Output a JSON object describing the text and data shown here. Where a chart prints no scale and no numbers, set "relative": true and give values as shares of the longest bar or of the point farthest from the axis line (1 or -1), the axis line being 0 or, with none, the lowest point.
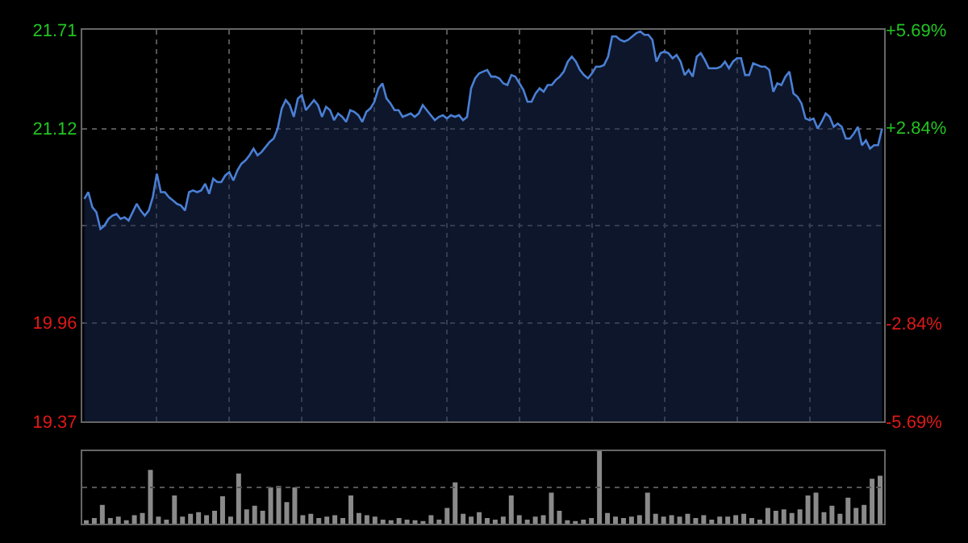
{
  "chart_data": [
    {
      "type": "area",
      "categories": [
        null,
        null,
        null,
        null,
        null,
        null,
        null,
        null,
        null,
        null,
        null,
        null,
        null,
        null,
        null,
        null,
        null,
        null,
        null,
        null,
        null,
        null,
        null,
        null,
        null,
        null,
        null,
        null,
        null,
        null,
        null,
        null,
        null,
        null,
        null,
        null,
        null,
        null,
        null,
        null,
        null,
        null,
        null,
        null,
        null,
        null,
        null,
        null,
        null,
        null,
        null,
        null,
        null,
        null,
        null,
        null,
        null,
        null,
        null,
        null,
        null,
        null,
        null,
        null,
        null,
        null,
        null,
        null,
        null,
        null,
        null,
        null,
        null,
        null,
        null,
        null,
        null,
        null,
        null,
        null,
        null,
        null,
        null,
        null,
        null,
        null,
        null,
        null,
        null,
        null,
        null,
        null,
        null,
        null,
        null,
        null,
        null,
        null,
        null,
        null,
        null,
        null,
        null,
        null,
        null,
        null,
        null,
        null,
        null,
        null,
        null,
        null,
        null,
        null,
        null,
        null,
        null,
        null,
        null,
        null,
        null,
        null,
        null,
        null,
        null,
        null,
        null,
        null,
        null,
        null,
        null,
        null,
        null,
        null,
        null,
        null,
        null,
        null,
        null,
        null,
        null,
        null,
        null,
        null,
        null,
        null,
        null,
        null,
        null,
        null,
        null,
        null,
        null,
        null,
        null,
        null,
        null,
        null,
        null,
        null,
        null,
        null,
        null,
        null,
        null,
        null,
        null,
        null,
        null,
        null,
        null,
        null,
        null,
        null,
        null,
        null,
        null,
        null,
        null,
        null,
        null,
        null,
        null,
        null,
        null,
        null,
        null,
        null,
        null,
        null,
        null,
        null,
        null,
        null,
        null,
        null,
        null,
        null,
        null
      ],
      "series": [
        {
          "color": "#4a7fd4",
          "values": [
            20.7,
            20.74,
            20.65,
            20.62,
            20.52,
            20.54,
            20.58,
            20.6,
            20.61,
            20.58,
            20.59,
            20.57,
            20.62,
            20.67,
            20.63,
            20.6,
            20.63,
            20.71,
            20.85,
            20.74,
            20.74,
            20.71,
            20.69,
            20.67,
            20.66,
            20.63,
            20.74,
            20.75,
            20.74,
            20.75,
            20.79,
            20.73,
            20.82,
            20.8,
            20.8,
            20.84,
            20.86,
            20.81,
            20.87,
            20.91,
            20.93,
            20.96,
            21.0,
            20.96,
            20.98,
            21.01,
            21.04,
            21.06,
            21.12,
            21.24,
            21.29,
            21.26,
            21.19,
            21.3,
            21.32,
            21.23,
            21.26,
            21.29,
            21.26,
            21.19,
            21.25,
            21.23,
            21.17,
            21.21,
            21.19,
            21.16,
            21.23,
            21.22,
            21.2,
            21.16,
            21.22,
            21.24,
            21.28,
            21.36,
            21.39,
            21.3,
            21.27,
            21.23,
            21.23,
            21.19,
            21.2,
            21.21,
            21.19,
            21.21,
            21.26,
            21.23,
            21.2,
            21.17,
            21.19,
            21.2,
            21.18,
            21.2,
            21.19,
            21.2,
            21.17,
            21.19,
            21.36,
            21.42,
            21.45,
            21.46,
            21.47,
            21.43,
            21.43,
            21.42,
            21.39,
            21.38,
            21.44,
            21.43,
            21.39,
            21.35,
            21.28,
            21.28,
            21.33,
            21.36,
            21.34,
            21.38,
            21.38,
            21.41,
            21.43,
            21.46,
            21.52,
            21.55,
            21.52,
            21.47,
            21.44,
            21.42,
            21.45,
            21.49,
            21.49,
            21.5,
            21.55,
            21.67,
            21.67,
            21.65,
            21.64,
            21.65,
            21.67,
            21.69,
            21.7,
            21.68,
            21.68,
            21.65,
            21.52,
            21.57,
            21.58,
            21.57,
            21.54,
            21.56,
            21.52,
            21.44,
            21.47,
            21.43,
            21.55,
            21.57,
            21.53,
            21.48,
            21.48,
            21.48,
            21.49,
            21.52,
            21.48,
            21.52,
            21.54,
            21.54,
            21.44,
            21.44,
            21.51,
            21.5,
            21.49,
            21.49,
            21.47,
            21.34,
            21.39,
            21.38,
            21.43,
            21.46,
            21.33,
            21.31,
            21.27,
            21.18,
            21.17,
            21.18,
            21.12,
            21.16,
            21.21,
            21.19,
            21.13,
            21.15,
            21.13,
            21.06,
            21.06,
            21.09,
            21.13,
            21.02,
            21.05,
            21.0,
            21.02,
            21.02,
            21.12
          ]
        }
      ],
      "ylim": [
        19.37,
        21.71
      ],
      "yticks": [
        19.37,
        19.96,
        {
          "value": 20.54,
          "label": null
        },
        21.12,
        21.71
      ],
      "y2lim": [
        -5.69,
        5.69
      ],
      "y2ticks": [
        {
          "value": -5.69,
          "label": "-5.69%"
        },
        {
          "value": -2.84,
          "label": "-2.84%"
        },
        {
          "value": 2.84,
          "label": "+2.84%"
        },
        {
          "value": 5.69,
          "label": "+5.69%"
        }
      ],
      "tick_labels": "y",
      "grid": true
    },
    {
      "type": "bar",
      "relative": true,
      "color": "#8a8a8a",
      "tick_labels": false,
      "ref_lines": [
        {
          "axis": "y",
          "value": 0.5,
          "color": "#555555",
          "line_style": "dotted"
        }
      ],
      "categories": [
        null,
        null,
        null,
        null,
        null,
        null,
        null,
        null,
        null,
        null,
        null,
        null,
        null,
        null,
        null,
        null,
        null,
        null,
        null,
        null,
        null,
        null,
        null,
        null,
        null,
        null,
        null,
        null,
        null,
        null,
        null,
        null,
        null,
        null,
        null,
        null,
        null,
        null,
        null,
        null,
        null,
        null,
        null,
        null,
        null,
        null,
        null,
        null,
        null,
        null,
        null,
        null,
        null,
        null,
        null,
        null,
        null,
        null,
        null,
        null,
        null,
        null,
        null,
        null,
        null,
        null,
        null,
        null,
        null,
        null,
        null,
        null,
        null,
        null,
        null,
        null,
        null,
        null,
        null,
        null,
        null,
        null,
        null,
        null,
        null,
        null,
        null,
        null,
        null,
        null,
        null,
        null,
        null,
        null,
        null,
        null,
        null,
        null,
        null,
        null
      ],
      "values": [
        0.05,
        0.08,
        0.26,
        0.08,
        0.1,
        0.05,
        0.12,
        0.15,
        0.74,
        0.1,
        0.06,
        0.39,
        0.1,
        0.14,
        0.16,
        0.12,
        0.18,
        0.38,
        0.1,
        0.69,
        0.2,
        0.25,
        0.18,
        0.5,
        0.52,
        0.3,
        0.5,
        0.12,
        0.14,
        0.08,
        0.1,
        0.12,
        0.08,
        0.39,
        0.15,
        0.12,
        0.1,
        0.06,
        0.05,
        0.08,
        0.06,
        0.05,
        0.04,
        0.12,
        0.06,
        0.22,
        0.57,
        0.14,
        0.1,
        0.16,
        0.08,
        0.06,
        0.1,
        0.39,
        0.12,
        0.06,
        0.1,
        0.12,
        0.43,
        0.18,
        0.05,
        0.04,
        0.06,
        0.08,
        1.0,
        0.15,
        0.1,
        0.08,
        0.1,
        0.12,
        0.43,
        0.14,
        0.1,
        0.12,
        0.1,
        0.14,
        0.08,
        0.12,
        0.06,
        0.1,
        0.1,
        0.12,
        0.14,
        0.08,
        0.06,
        0.22,
        0.18,
        0.2,
        0.15,
        0.2,
        0.39,
        0.43,
        0.16,
        0.25,
        0.14,
        0.36,
        0.22,
        0.26,
        0.62,
        0.66
      ]
    }
  ]
}
